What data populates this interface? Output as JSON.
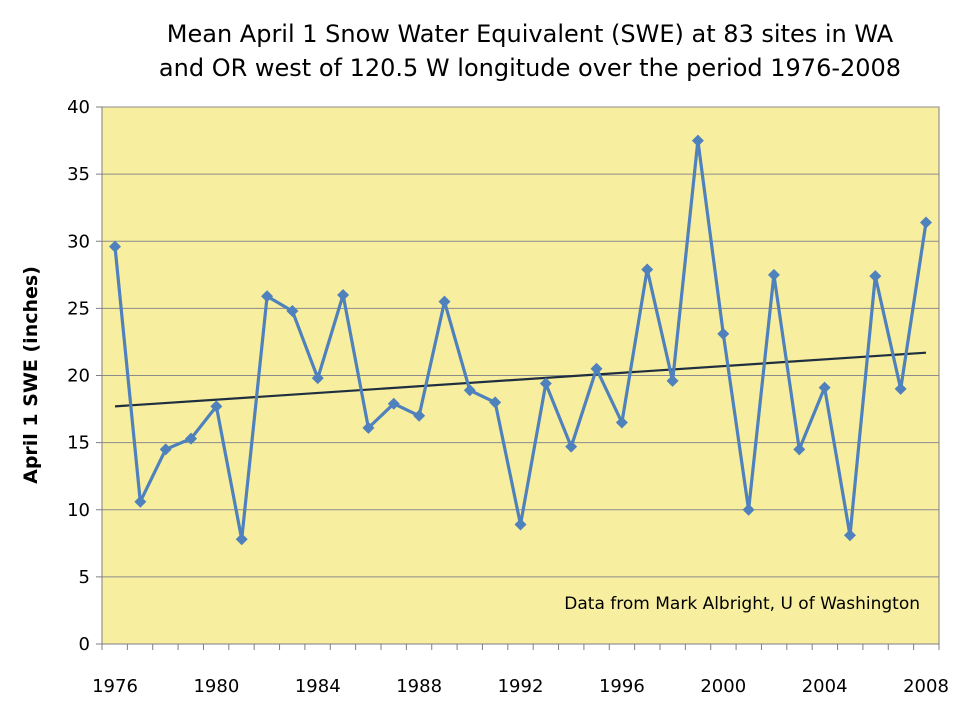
{
  "chart_data": {
    "type": "line",
    "title": [
      "Mean April 1 Snow Water Equivalent (SWE) at 83 sites in WA",
      "and OR west of 120.5 W longitude over the period 1976-2008"
    ],
    "xlabel": "",
    "ylabel": "April 1 SWE (inches)",
    "annotation": "Data from Mark Albright, U of Washington",
    "xlim": [
      1976,
      2008
    ],
    "ylim": [
      0,
      40
    ],
    "x_ticks": [
      "1976",
      "1980",
      "1984",
      "1988",
      "1992",
      "1996",
      "2000",
      "2004",
      "2008"
    ],
    "y_ticks": [
      "0",
      "5",
      "10",
      "15",
      "20",
      "25",
      "30",
      "35",
      "40"
    ],
    "grid": "horizontal",
    "plot_background": "#f7ee9f",
    "series": [
      {
        "color": "#4f81bd",
        "x": [
          1976,
          1977,
          1978,
          1979,
          1980,
          1981,
          1982,
          1983,
          1984,
          1985,
          1986,
          1987,
          1988,
          1989,
          1990,
          1991,
          1992,
          1993,
          1994,
          1995,
          1996,
          1997,
          1998,
          1999,
          2000,
          2001,
          2002,
          2003,
          2004,
          2005,
          2006,
          2007,
          2008
        ],
        "values": [
          29.6,
          10.6,
          14.5,
          15.3,
          17.7,
          7.8,
          25.9,
          24.8,
          19.8,
          26.0,
          16.1,
          17.9,
          17.0,
          25.5,
          18.9,
          18.0,
          8.9,
          19.4,
          14.7,
          20.5,
          16.5,
          27.9,
          19.6,
          37.5,
          23.1,
          10.0,
          27.5,
          14.5,
          19.1,
          8.1,
          27.4,
          19.0,
          31.4
        ]
      }
    ],
    "trendline": {
      "color": "#1f2f3f",
      "x": [
        1976,
        2008
      ],
      "values": [
        17.7,
        21.7
      ]
    }
  }
}
